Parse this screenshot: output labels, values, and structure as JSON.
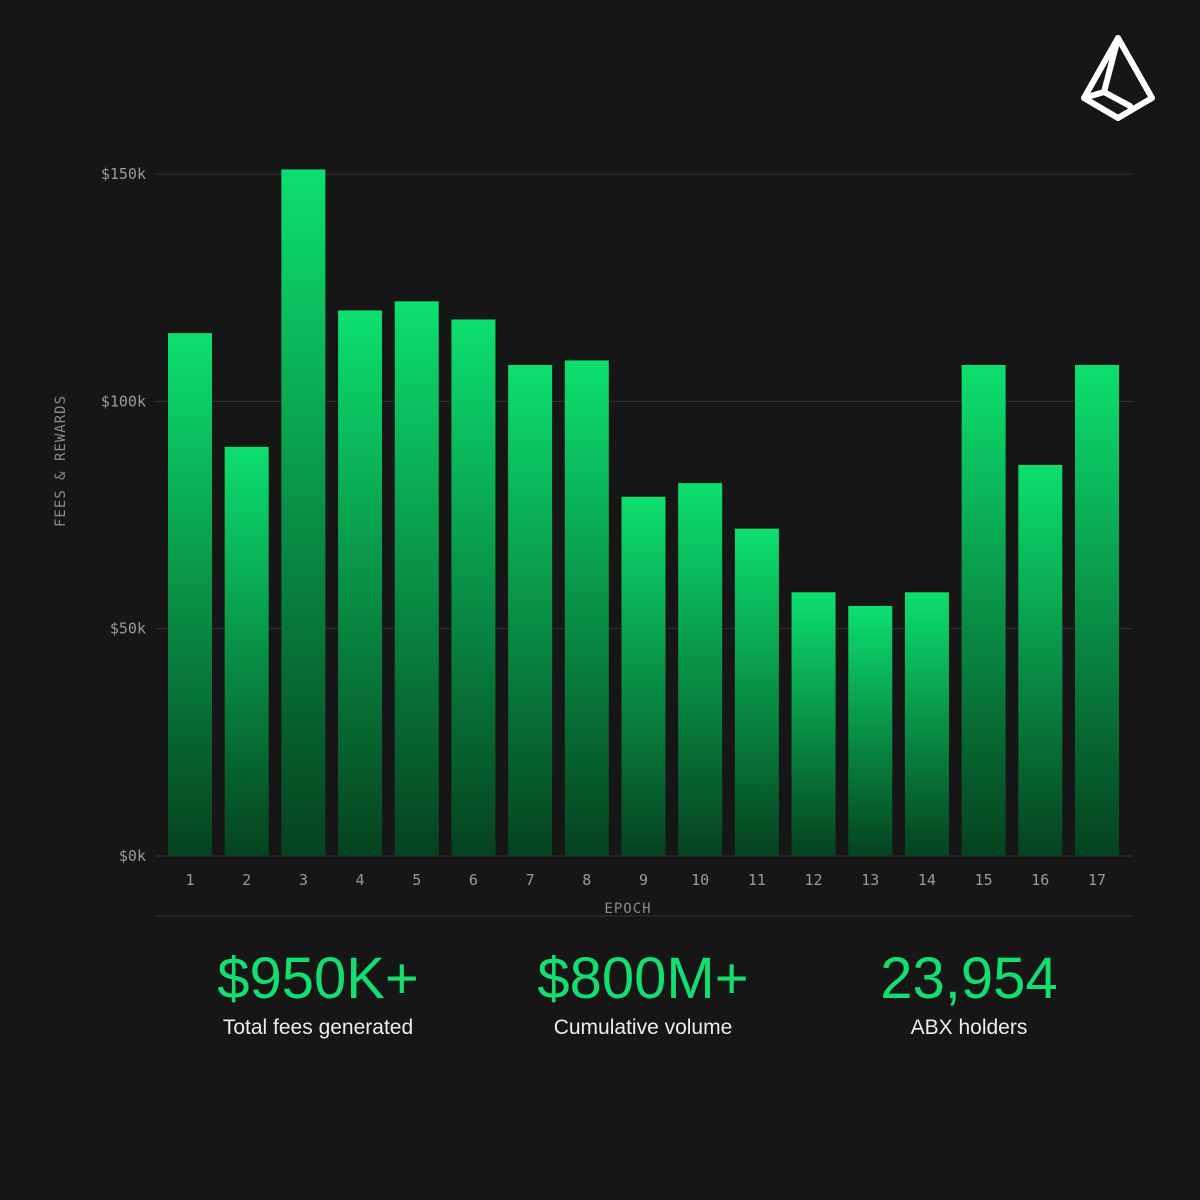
{
  "chart_data": {
    "type": "bar",
    "categories": [
      "1",
      "2",
      "3",
      "4",
      "5",
      "6",
      "7",
      "8",
      "9",
      "10",
      "11",
      "12",
      "13",
      "14",
      "15",
      "16",
      "17"
    ],
    "values": [
      115,
      90,
      151,
      120,
      122,
      118,
      108,
      109,
      79,
      82,
      72,
      58,
      55,
      58,
      108,
      86,
      108
    ],
    "unit": "thousand USD",
    "ylim": [
      0,
      150
    ],
    "yticks": [
      0,
      50,
      100,
      150
    ],
    "ytick_labels": [
      "$0k",
      "$50k",
      "$100k",
      "$150k"
    ],
    "xlabel": "EPOCH",
    "ylabel": "FEES & REWARDS",
    "grid": true,
    "colors": {
      "bar_top": "#0ce06e",
      "bar_bottom": "#05421f",
      "grid": "#333333",
      "background": "#161616"
    }
  },
  "stats": [
    {
      "value": "$950K+",
      "label": "Total fees generated"
    },
    {
      "value": "$800M+",
      "label": "Cumulative volume"
    },
    {
      "value": "23,954",
      "label": "ABX holders"
    }
  ],
  "logo": {
    "icon": "abx-logo-icon"
  }
}
